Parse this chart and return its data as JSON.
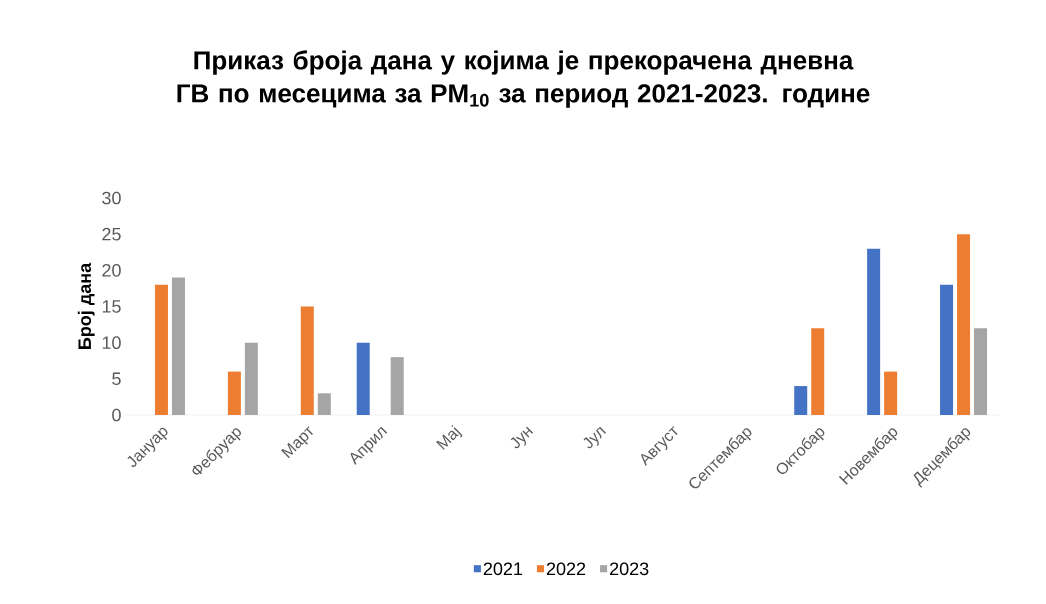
{
  "chart_data": {
    "type": "bar",
    "title": "Приказ броја дана у којима је прекорачена дневна ГВ по месецима за PM$_{10}$ за период 2021-2023. године",
    "ylabel": "Број дана",
    "categories": [
      "Јануар",
      "Фебруар",
      "Март",
      "Април",
      "Мај",
      "Јун",
      "Јул",
      "Август",
      "Септембар",
      "Октобар",
      "Новембар",
      "Децембар"
    ],
    "series": [
      {
        "name": "2021",
        "color": "#4472c4",
        "values": [
          0,
          0,
          0,
          10,
          0,
          0,
          0,
          0,
          0,
          4,
          23,
          18
        ]
      },
      {
        "name": "2022",
        "color": "#ed7d31",
        "values": [
          18,
          6,
          15,
          0,
          0,
          0,
          0,
          0,
          0,
          12,
          6,
          25
        ]
      },
      {
        "name": "2023",
        "color": "#a5a5a5",
        "values": [
          19,
          10,
          3,
          8,
          0,
          0,
          0,
          0,
          0,
          0,
          0,
          12
        ]
      }
    ],
    "ylim": [
      0,
      30
    ],
    "yticks": [
      0,
      5,
      10,
      15,
      20,
      25,
      30
    ],
    "grid": false,
    "legend": "bottom"
  }
}
